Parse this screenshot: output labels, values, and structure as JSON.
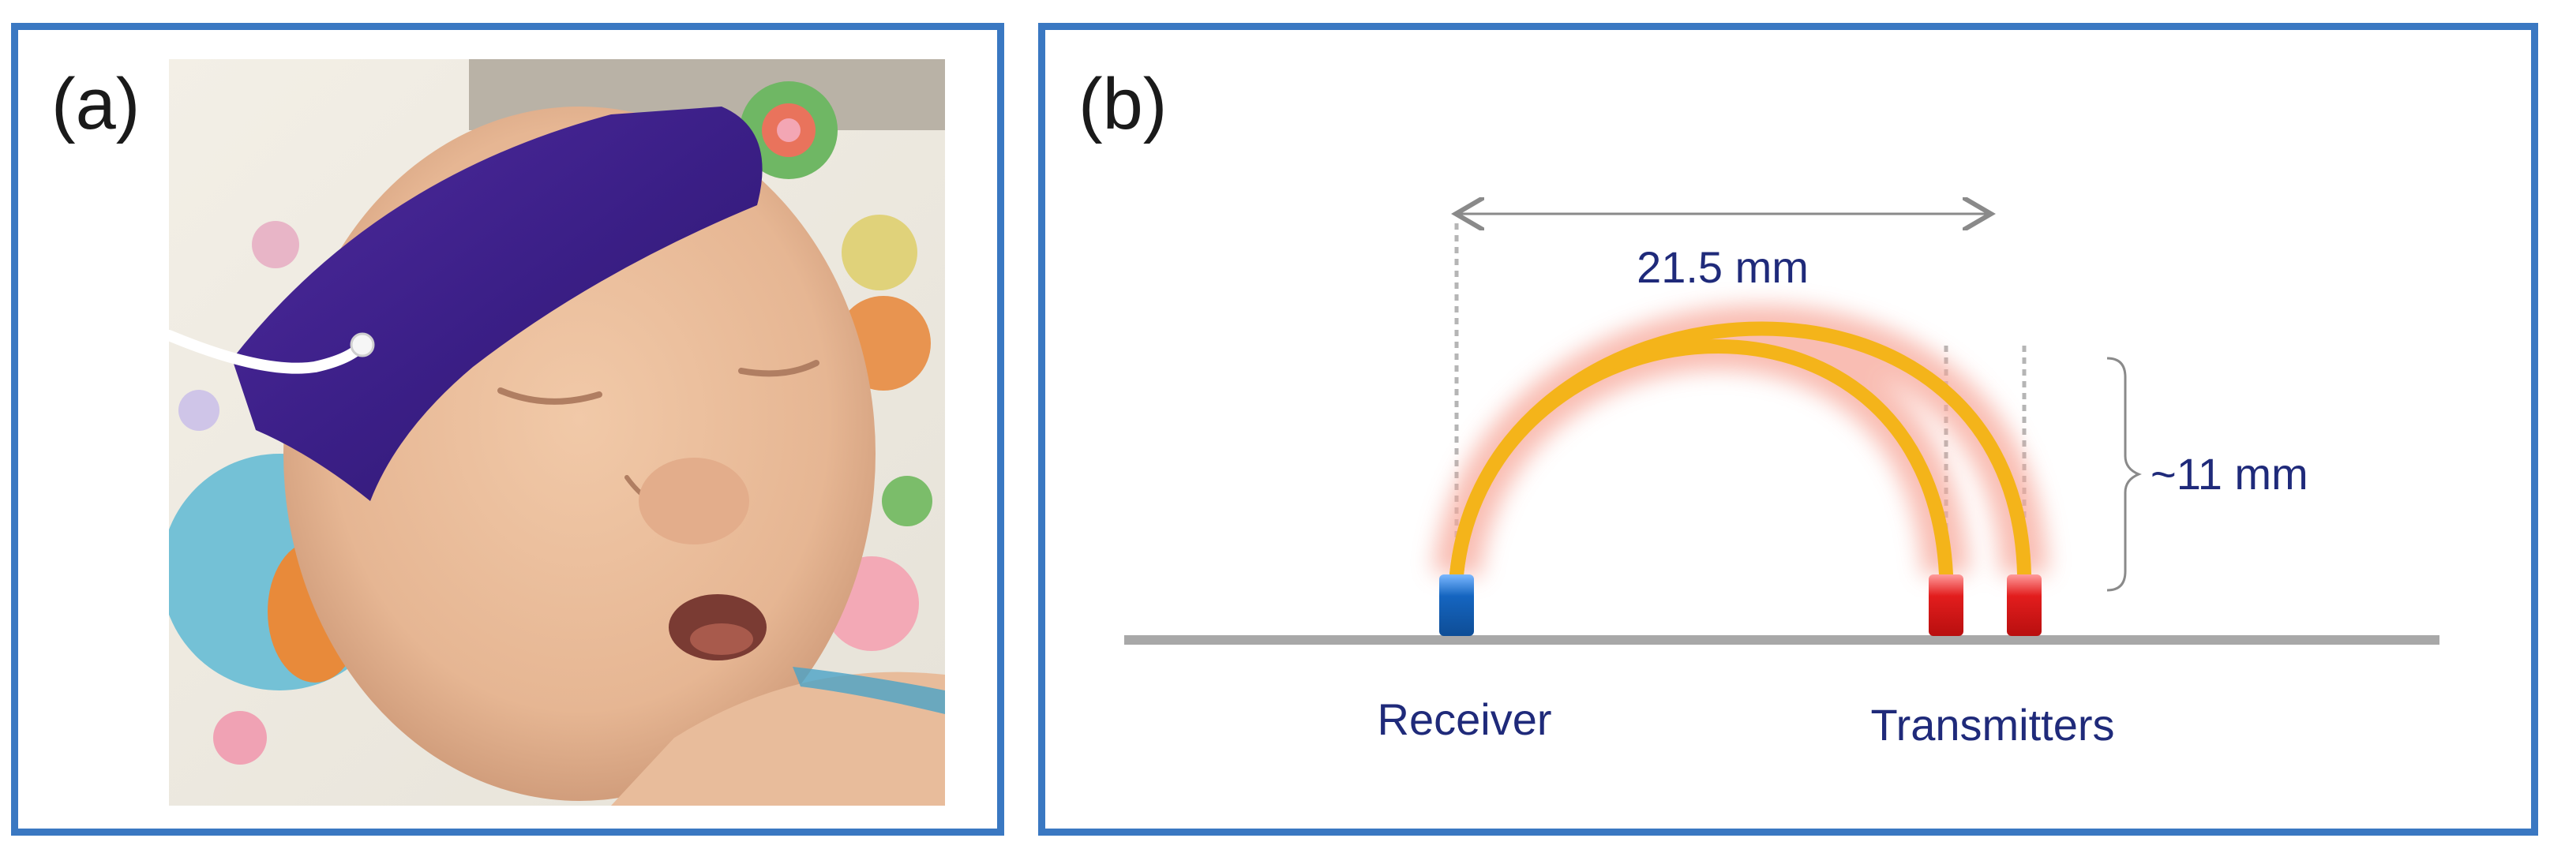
{
  "panels": {
    "a": {
      "label": "(a)"
    },
    "b": {
      "label": "(b)"
    }
  },
  "diagram": {
    "distance_label": "21.5 mm",
    "height_label": "~11 mm",
    "receiver_label": "Receiver",
    "transmitters_label": "Transmitters"
  },
  "colors": {
    "frame": "#3a78c2",
    "receiver": "#1565c0",
    "transmitter": "#e21d1d",
    "light_path": "#f4b41a",
    "glow": "#f7a79a",
    "label_text": "#1f2a7a",
    "baseline": "#a8a8a8"
  },
  "icons": {
    "headband": "purple-headband-icon",
    "sensor_cable": "cable-icon"
  }
}
